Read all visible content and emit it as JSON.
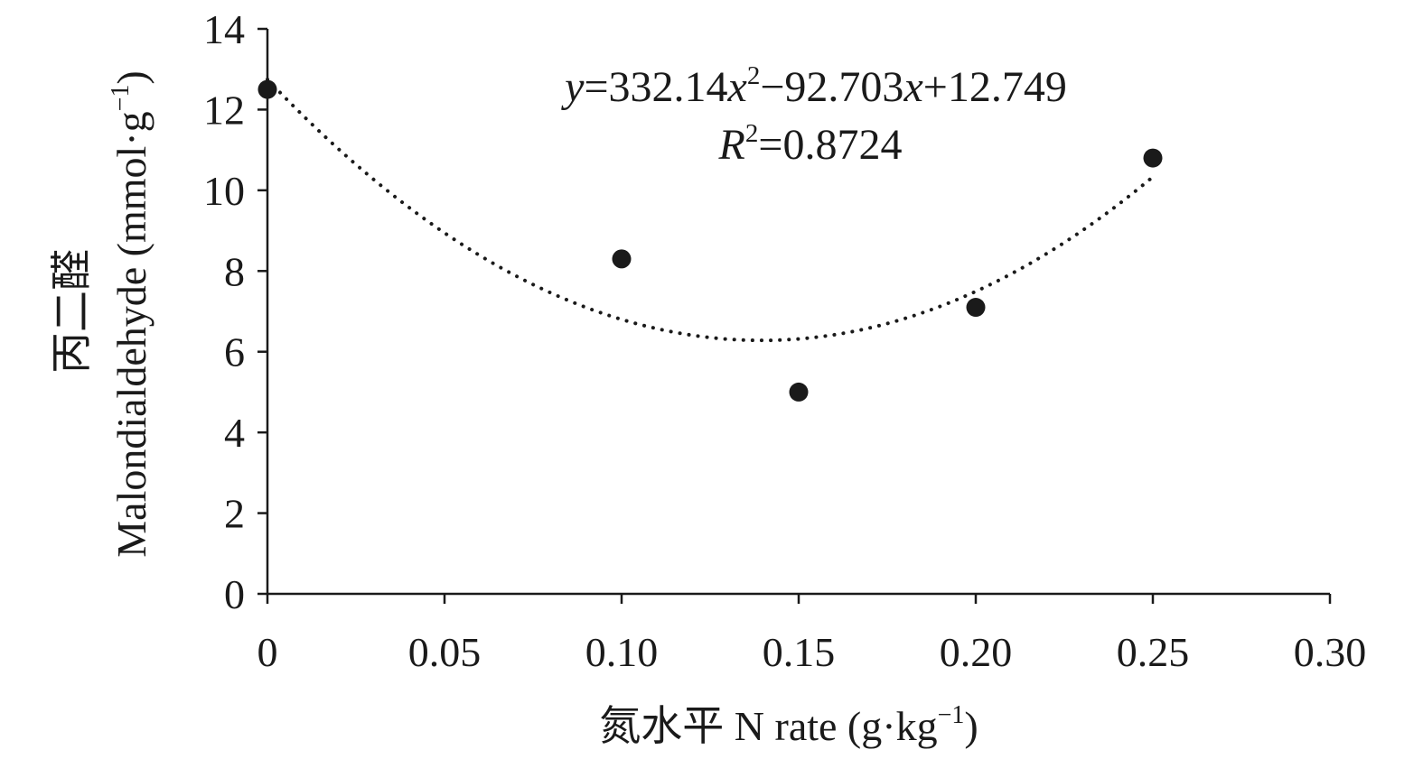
{
  "chart_data": {
    "type": "scatter",
    "xlabel": "氮水平 N rate (g·kg",
    "xlabel_sup": "−1",
    "xlabel_end": ")",
    "ylabel_cn": "丙二醛",
    "ylabel": "Malondialdehyde (mmol·g",
    "ylabel_sup": "−1",
    "ylabel_end": ")",
    "xlim": [
      0,
      0.3
    ],
    "ylim": [
      0,
      14
    ],
    "x_ticks": [
      "0",
      "0.05",
      "0.10",
      "0.15",
      "0.20",
      "0.25",
      "0.30"
    ],
    "y_ticks": [
      "0",
      "2",
      "4",
      "6",
      "8",
      "10",
      "12",
      "14"
    ],
    "grid": false,
    "series": [
      {
        "points": [
          {
            "x": 0,
            "y": 12.5
          },
          {
            "x": 0.1,
            "y": 8.3
          },
          {
            "x": 0.15,
            "y": 5.0
          },
          {
            "x": 0.2,
            "y": 7.1
          },
          {
            "x": 0.25,
            "y": 10.8
          }
        ],
        "color": "#1a1a1a"
      }
    ],
    "trendline": {
      "type": "polynomial",
      "coefficients": [
        332.14,
        -92.703,
        12.749
      ],
      "x_range": [
        0,
        0.25
      ],
      "style": "dotted"
    },
    "annotations": {
      "equation_y": "y",
      "equation_eq1": "=332.14",
      "equation_x1": "x",
      "equation_sup": "2",
      "equation_mid": "−92.703",
      "equation_x2": "x",
      "equation_end": "+12.749",
      "r2_r": "R",
      "r2_sup": "2",
      "r2_value": "=0.8724"
    }
  }
}
